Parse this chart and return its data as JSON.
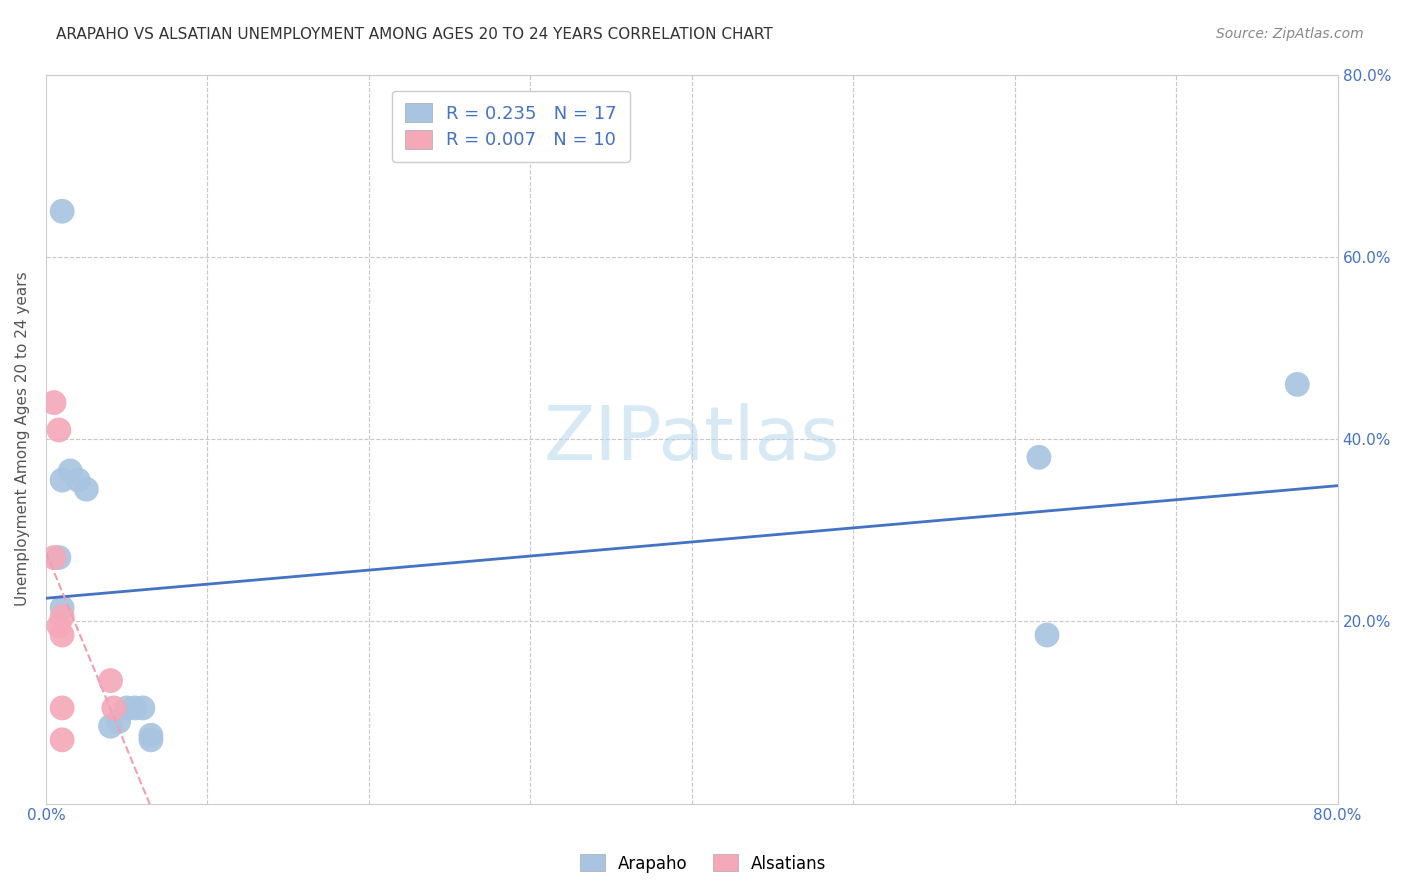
{
  "title": "ARAPAHO VS ALSATIAN UNEMPLOYMENT AMONG AGES 20 TO 24 YEARS CORRELATION CHART",
  "source": "Source: ZipAtlas.com",
  "ylabel": "Unemployment Among Ages 20 to 24 years",
  "xlim": [
    0.0,
    0.8
  ],
  "ylim": [
    0.0,
    0.8
  ],
  "x_ticks": [
    0.0,
    0.1,
    0.2,
    0.3,
    0.4,
    0.5,
    0.6,
    0.7,
    0.8
  ],
  "x_tick_labels": [
    "0.0%",
    "",
    "",
    "",
    "",
    "",
    "",
    "",
    "80.0%"
  ],
  "y_ticks": [
    0.0,
    0.2,
    0.4,
    0.6,
    0.8
  ],
  "y_tick_labels_left": [
    "",
    "",
    "",
    "",
    ""
  ],
  "y_tick_labels_right": [
    "",
    "20.0%",
    "40.0%",
    "60.0%",
    "80.0%"
  ],
  "arapaho_color": "#a8c4e0",
  "alsatian_color": "#f4a8b8",
  "arapaho_line_color": "#4472c4",
  "alsatian_line_color": "#f0a0b0",
  "arapaho_R": 0.235,
  "arapaho_N": 17,
  "alsatian_R": 0.007,
  "alsatian_N": 10,
  "arapaho_x": [
    0.008,
    0.01,
    0.015,
    0.02,
    0.025,
    0.04,
    0.045,
    0.05,
    0.055,
    0.06,
    0.065,
    0.065,
    0.01,
    0.615,
    0.62,
    0.775,
    0.01
  ],
  "arapaho_y": [
    0.27,
    0.355,
    0.365,
    0.355,
    0.345,
    0.085,
    0.09,
    0.105,
    0.105,
    0.105,
    0.07,
    0.075,
    0.65,
    0.38,
    0.185,
    0.46,
    0.215
  ],
  "alsatian_x": [
    0.005,
    0.008,
    0.008,
    0.01,
    0.01,
    0.01,
    0.01,
    0.04,
    0.042,
    0.005
  ],
  "alsatian_y": [
    0.44,
    0.41,
    0.195,
    0.205,
    0.185,
    0.105,
    0.07,
    0.135,
    0.105,
    0.27
  ],
  "watermark": "ZIPatlas",
  "background_color": "#ffffff",
  "grid_color": "#c8c8c8",
  "legend_text1": "R = 0.235   N = 17",
  "legend_text2": "R = 0.007   N = 10"
}
